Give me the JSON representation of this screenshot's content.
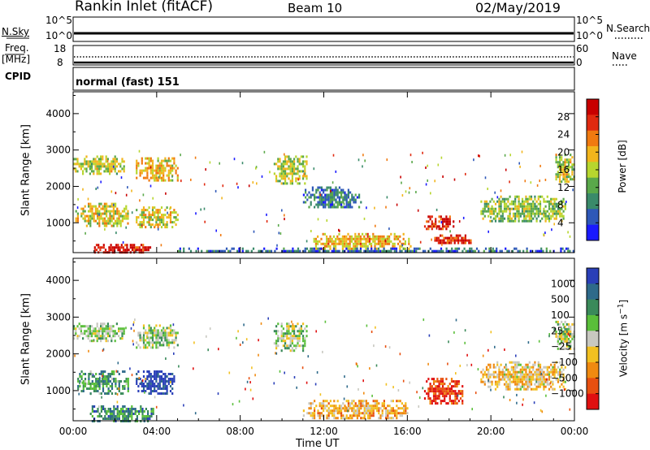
{
  "header": {
    "title": "Rankin Inlet (fitACF)",
    "beam": "Beam 10",
    "date": "02/May/2019"
  },
  "status_panels": {
    "nsky": {
      "label": "N.Sky",
      "right_label": "N.Search",
      "left_ticks": [
        "10^5",
        "10^0"
      ],
      "right_ticks": [
        "10^5",
        "10^0"
      ]
    },
    "freq": {
      "label_top": "Freq.",
      "label_bottom": "[MHz]",
      "right_label": "Nave",
      "left_ticks": [
        "18",
        "8"
      ],
      "right_ticks": [
        "60",
        "0"
      ]
    },
    "cpid": {
      "label": "CPID",
      "value": "normal (fast) 151"
    }
  },
  "chart_data": [
    {
      "type": "heatmap",
      "name": "power-panel",
      "ylabel": "Slant Range [km]",
      "xlabel": "",
      "x_ticks": [
        "00:00",
        "04:00",
        "08:00",
        "12:00",
        "16:00",
        "20:00",
        "00:00"
      ],
      "y_ticks": [
        "1000",
        "2000",
        "3000",
        "4000"
      ],
      "ylim": [
        180,
        4600
      ],
      "xlim_hours": [
        0,
        24
      ],
      "colorbar": {
        "label": "Power [dB]",
        "ticks": [
          "4",
          "8",
          "12",
          "16",
          "20",
          "24",
          "28"
        ],
        "range": [
          0,
          32
        ],
        "colors": [
          "#1a1aff",
          "#2e58b8",
          "#3a8a6a",
          "#5aa84a",
          "#b7d62e",
          "#f2b51c",
          "#f07a10",
          "#e02a10",
          "#c80000"
        ]
      },
      "regions": [
        {
          "t": [
            0.0,
            2.4
          ],
          "r": [
            2380,
            2850
          ],
          "level": 0.5
        },
        {
          "t": [
            3.0,
            5.0
          ],
          "r": [
            2150,
            2800
          ],
          "level": 0.6
        },
        {
          "t": [
            0.1,
            2.6
          ],
          "r": [
            900,
            1550
          ],
          "level": 0.55
        },
        {
          "t": [
            3.0,
            5.0
          ],
          "r": [
            900,
            1450
          ],
          "level": 0.55
        },
        {
          "t": [
            1.0,
            3.7
          ],
          "r": [
            190,
            420
          ],
          "level": 0.92
        },
        {
          "t": [
            9.6,
            11.2
          ],
          "r": [
            2100,
            2850
          ],
          "level": 0.5
        },
        {
          "t": [
            11.0,
            13.8
          ],
          "r": [
            1400,
            2000
          ],
          "level": 0.25
        },
        {
          "t": [
            11.5,
            16.2
          ],
          "r": [
            280,
            720
          ],
          "level": 0.62
        },
        {
          "t": [
            16.8,
            18.2
          ],
          "r": [
            800,
            1200
          ],
          "level": 0.9
        },
        {
          "t": [
            17.2,
            19.0
          ],
          "r": [
            420,
            680
          ],
          "level": 0.85
        },
        {
          "t": [
            19.5,
            23.6
          ],
          "r": [
            1050,
            1750
          ],
          "level": 0.45
        },
        {
          "t": [
            23.0,
            24.0
          ],
          "r": [
            2150,
            2900
          ],
          "level": 0.5
        },
        {
          "t": [
            5.0,
            24.0
          ],
          "r": [
            190,
            320
          ],
          "level": 0.2
        }
      ]
    },
    {
      "type": "heatmap",
      "name": "velocity-panel",
      "ylabel": "Slant Range [km]",
      "xlabel": "Time UT",
      "x_ticks": [
        "00:00",
        "04:00",
        "08:00",
        "12:00",
        "16:00",
        "20:00",
        "00:00"
      ],
      "y_ticks": [
        "1000",
        "2000",
        "3000",
        "4000"
      ],
      "ylim": [
        180,
        4600
      ],
      "xlim_hours": [
        0,
        24
      ],
      "colorbar": {
        "label": "Velocity [m s^-1]",
        "ticks": [
          "1000",
          "500",
          "100",
          "25",
          "−25",
          "−100",
          "−500",
          "−1000"
        ],
        "range": [
          -1000,
          1000
        ],
        "colors": [
          "#2a3fb8",
          "#2e6a8a",
          "#3a8a5a",
          "#5abf3a",
          "#c8c8c0",
          "#f2c020",
          "#f08a10",
          "#e85010",
          "#e01010"
        ]
      },
      "regions": [
        {
          "t": [
            0.0,
            2.4
          ],
          "r": [
            2380,
            2850
          ],
          "level": 0.45
        },
        {
          "t": [
            3.0,
            5.0
          ],
          "r": [
            2150,
            2800
          ],
          "level": 0.45
        },
        {
          "t": [
            0.2,
            2.6
          ],
          "r": [
            950,
            1550
          ],
          "level": 0.3
        },
        {
          "t": [
            3.0,
            4.8
          ],
          "r": [
            900,
            1550
          ],
          "level": 0.02
        },
        {
          "t": [
            0.8,
            3.8
          ],
          "r": [
            190,
            600
          ],
          "level": 0.25
        },
        {
          "t": [
            9.6,
            11.2
          ],
          "r": [
            2100,
            2850
          ],
          "level": 0.45
        },
        {
          "t": [
            11.0,
            16.0
          ],
          "r": [
            250,
            750
          ],
          "level": 0.65
        },
        {
          "t": [
            16.8,
            18.6
          ],
          "r": [
            650,
            1350
          ],
          "level": 0.9
        },
        {
          "t": [
            19.5,
            23.6
          ],
          "r": [
            1050,
            1800
          ],
          "level": 0.6
        },
        {
          "t": [
            23.0,
            24.0
          ],
          "r": [
            2150,
            2900
          ],
          "level": 0.45
        }
      ]
    }
  ]
}
